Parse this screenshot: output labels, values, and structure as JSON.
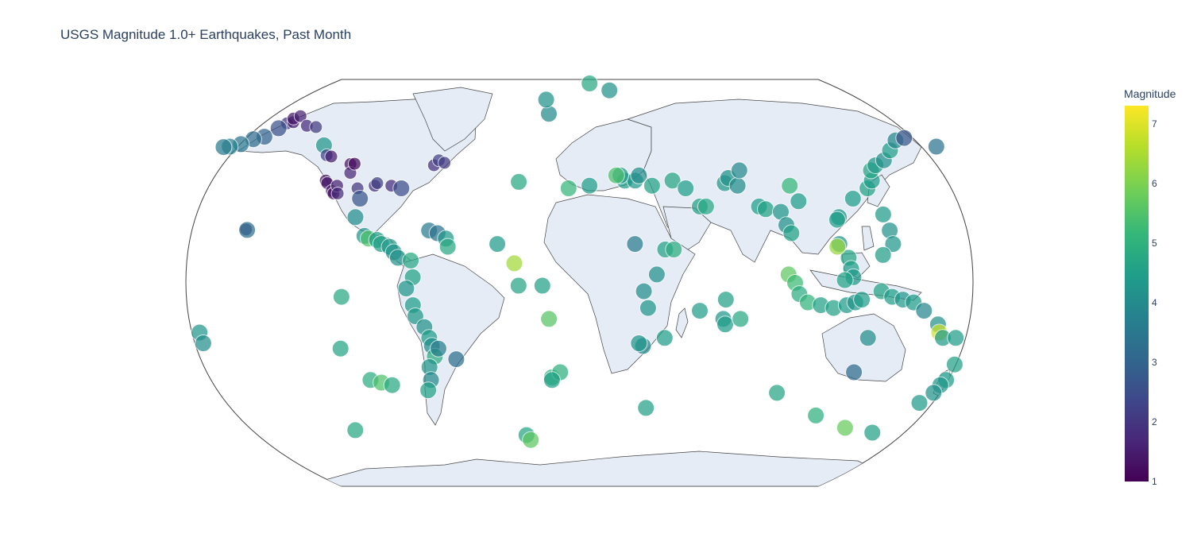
{
  "title": "USGS Magnitude 1.0+ Earthquakes, Past Month",
  "colorbar": {
    "title": "Magnitude",
    "colorscale": [
      "#440154",
      "#482878",
      "#3e4989",
      "#31688e",
      "#26828e",
      "#1f9e89",
      "#35b779",
      "#6ece58",
      "#b5de2b",
      "#fde725"
    ],
    "range": [
      1,
      7.3
    ],
    "ticks": [
      "1",
      "2",
      "3",
      "4",
      "5",
      "6",
      "7"
    ]
  },
  "map": {
    "projection": "natural earth",
    "land_color": "#e5ecf6",
    "coast_color": "#444444"
  },
  "chart_data": {
    "type": "scatter",
    "x_label": "Longitude",
    "y_label": "Latitude",
    "points": [
      {
        "lon": -152,
        "lat": 61,
        "mag": 2.0
      },
      {
        "lon": -149,
        "lat": 61.5,
        "mag": 1.5
      },
      {
        "lon": -150,
        "lat": 63,
        "mag": 1.4
      },
      {
        "lon": -147,
        "lat": 64,
        "mag": 1.6
      },
      {
        "lon": -155,
        "lat": 59,
        "mag": 2.6
      },
      {
        "lon": -160,
        "lat": 55.5,
        "mag": 3.0
      },
      {
        "lon": -165,
        "lat": 54.5,
        "mag": 3.2
      },
      {
        "lon": -170,
        "lat": 52.5,
        "mag": 3.5
      },
      {
        "lon": -175,
        "lat": 51.5,
        "mag": 3.8
      },
      {
        "lon": -178,
        "lat": 51.3,
        "mag": 3.6
      },
      {
        "lon": 179,
        "lat": 51.5,
        "mag": 3.4
      },
      {
        "lon": -141,
        "lat": 60,
        "mag": 1.8
      },
      {
        "lon": -136,
        "lat": 59.5,
        "mag": 2.1
      },
      {
        "lon": -128,
        "lat": 52,
        "mag": 4.3
      },
      {
        "lon": -125,
        "lat": 48,
        "mag": 2.3
      },
      {
        "lon": -122.5,
        "lat": 47.5,
        "mag": 1.5
      },
      {
        "lon": -122,
        "lat": 38,
        "mag": 1.3
      },
      {
        "lon": -121,
        "lat": 37,
        "mag": 1.4
      },
      {
        "lon": -118,
        "lat": 34,
        "mag": 1.5
      },
      {
        "lon": -117,
        "lat": 33,
        "mag": 1.2
      },
      {
        "lon": -116,
        "lat": 36,
        "mag": 1.6
      },
      {
        "lon": -115,
        "lat": 33,
        "mag": 1.8
      },
      {
        "lon": -112,
        "lat": 44.5,
        "mag": 1.3
      },
      {
        "lon": -111,
        "lat": 41,
        "mag": 1.7
      },
      {
        "lon": -110,
        "lat": 44.6,
        "mag": 1.2
      },
      {
        "lon": -106,
        "lat": 35,
        "mag": 2.0
      },
      {
        "lon": -104,
        "lat": 31,
        "mag": 2.7
      },
      {
        "lon": -98,
        "lat": 36,
        "mag": 1.9
      },
      {
        "lon": -97,
        "lat": 37,
        "mag": 2.2
      },
      {
        "lon": -90,
        "lat": 36,
        "mag": 1.8
      },
      {
        "lon": -85,
        "lat": 35,
        "mag": 2.5
      },
      {
        "lon": -71,
        "lat": 44,
        "mag": 1.9
      },
      {
        "lon": -69,
        "lat": 46,
        "mag": 2.2
      },
      {
        "lon": -66,
        "lat": 45,
        "mag": 2.1
      },
      {
        "lon": -155.5,
        "lat": 19.4,
        "mag": 2.0
      },
      {
        "lon": -155,
        "lat": 19.2,
        "mag": 3.3
      },
      {
        "lon": -105,
        "lat": 24,
        "mag": 4.1
      },
      {
        "lon": -100,
        "lat": 17,
        "mag": 4.3
      },
      {
        "lon": -98,
        "lat": 16,
        "mag": 5.5
      },
      {
        "lon": -94,
        "lat": 15.5,
        "mag": 4.5
      },
      {
        "lon": -92,
        "lat": 14,
        "mag": 4.6
      },
      {
        "lon": -88,
        "lat": 13,
        "mag": 4.4
      },
      {
        "lon": -86,
        "lat": 11,
        "mag": 4.3
      },
      {
        "lon": -84,
        "lat": 9,
        "mag": 4.2
      },
      {
        "lon": -78,
        "lat": 8,
        "mag": 4.8
      },
      {
        "lon": -70,
        "lat": 19,
        "mag": 3.6
      },
      {
        "lon": -66,
        "lat": 18,
        "mag": 3.4
      },
      {
        "lon": -62,
        "lat": 16,
        "mag": 4.4
      },
      {
        "lon": -61,
        "lat": 13,
        "mag": 4.8
      },
      {
        "lon": -77,
        "lat": 2,
        "mag": 4.6
      },
      {
        "lon": -80,
        "lat": -2,
        "mag": 4.3
      },
      {
        "lon": -77,
        "lat": -8,
        "mag": 4.5
      },
      {
        "lon": -76,
        "lat": -12,
        "mag": 4.4
      },
      {
        "lon": -72,
        "lat": -16,
        "mag": 4.2
      },
      {
        "lon": -70,
        "lat": -20,
        "mag": 4.5
      },
      {
        "lon": -69,
        "lat": -23,
        "mag": 4.1
      },
      {
        "lon": -68,
        "lat": -27,
        "mag": 4.9
      },
      {
        "lon": -71,
        "lat": -31,
        "mag": 4.3
      },
      {
        "lon": -71,
        "lat": -36,
        "mag": 4.0
      },
      {
        "lon": -73,
        "lat": -40,
        "mag": 4.6
      },
      {
        "lon": -66,
        "lat": -24,
        "mag": 3.7
      },
      {
        "lon": -58,
        "lat": -28,
        "mag": 3.3
      },
      {
        "lon": -110,
        "lat": -5,
        "mag": 4.8
      },
      {
        "lon": -112,
        "lat": -24,
        "mag": 4.7
      },
      {
        "lon": -100,
        "lat": -36,
        "mag": 4.9
      },
      {
        "lon": -95,
        "lat": -37,
        "mag": 5.5
      },
      {
        "lon": -90,
        "lat": -38,
        "mag": 4.8
      },
      {
        "lon": -114,
        "lat": -56,
        "mag": 4.8
      },
      {
        "lon": -27,
        "lat": -58,
        "mag": 4.7
      },
      {
        "lon": -25,
        "lat": -60,
        "mag": 5.7
      },
      {
        "lon": -38,
        "lat": 14,
        "mag": 4.4
      },
      {
        "lon": -30,
        "lat": 7,
        "mag": 6.4
      },
      {
        "lon": -28,
        "lat": -1,
        "mag": 4.7
      },
      {
        "lon": -17,
        "lat": -1,
        "mag": 4.6
      },
      {
        "lon": -14,
        "lat": -13,
        "mag": 5.6
      },
      {
        "lon": -13,
        "lat": -35,
        "mag": 5.0
      },
      {
        "lon": -29,
        "lat": 37.5,
        "mag": 4.8
      },
      {
        "lon": -16,
        "lat": 65,
        "mag": 4.0
      },
      {
        "lon": -18,
        "lat": 71,
        "mag": 4.2
      },
      {
        "lon": 6,
        "lat": 78,
        "mag": 4.8
      },
      {
        "lon": 17,
        "lat": 75,
        "mag": 4.2
      },
      {
        "lon": 22,
        "lat": 38,
        "mag": 4.5
      },
      {
        "lon": 27,
        "lat": 38,
        "mag": 4.3
      },
      {
        "lon": 29,
        "lat": 40,
        "mag": 4.1
      },
      {
        "lon": 20,
        "lat": 40,
        "mag": 4.4
      },
      {
        "lon": 35,
        "lat": 36,
        "mag": 4.6
      },
      {
        "lon": 45,
        "lat": 38,
        "mag": 4.7
      },
      {
        "lon": 51,
        "lat": 35,
        "mag": 4.5
      },
      {
        "lon": 57,
        "lat": 28,
        "mag": 4.6
      },
      {
        "lon": 60,
        "lat": 28,
        "mag": 4.8
      },
      {
        "lon": 70,
        "lat": 37,
        "mag": 4.4
      },
      {
        "lon": 72,
        "lat": 39,
        "mag": 4.2
      },
      {
        "lon": 76,
        "lat": 36,
        "mag": 4.1
      },
      {
        "lon": 78,
        "lat": 42,
        "mag": 4.0
      },
      {
        "lon": 85,
        "lat": 28,
        "mag": 4.5
      },
      {
        "lon": 88,
        "lat": 27,
        "mag": 4.6
      },
      {
        "lon": 95,
        "lat": 26,
        "mag": 4.3
      },
      {
        "lon": 97,
        "lat": 21,
        "mag": 4.2
      },
      {
        "lon": 99,
        "lat": 18,
        "mag": 4.6
      },
      {
        "lon": 101,
        "lat": 36,
        "mag": 5.2
      },
      {
        "lon": 104,
        "lat": 30,
        "mag": 4.5
      },
      {
        "lon": 97,
        "lat": 3,
        "mag": 5.7
      },
      {
        "lon": 100,
        "lat": 0,
        "mag": 5.3
      },
      {
        "lon": 102,
        "lat": -4,
        "mag": 4.9
      },
      {
        "lon": 106,
        "lat": -7,
        "mag": 5.1
      },
      {
        "lon": 112,
        "lat": -8,
        "mag": 4.6
      },
      {
        "lon": 118,
        "lat": -9,
        "mag": 4.6
      },
      {
        "lon": 124,
        "lat": -8,
        "mag": 4.4
      },
      {
        "lon": 128,
        "lat": -7,
        "mag": 4.3
      },
      {
        "lon": 131,
        "lat": -6,
        "mag": 4.5
      },
      {
        "lon": 121,
        "lat": 14,
        "mag": 4.3
      },
      {
        "lon": 125,
        "lat": 9,
        "mag": 4.7
      },
      {
        "lon": 126,
        "lat": 5,
        "mag": 4.5
      },
      {
        "lon": 127,
        "lat": 2,
        "mag": 4.4
      },
      {
        "lon": 123,
        "lat": 1,
        "mag": 4.6
      },
      {
        "lon": 122,
        "lat": 24,
        "mag": 4.3
      },
      {
        "lon": 121,
        "lat": 23,
        "mag": 4.5
      },
      {
        "lon": 120,
        "lat": 13,
        "mag": 6.3
      },
      {
        "lon": 130,
        "lat": 31,
        "mag": 4.5
      },
      {
        "lon": 138,
        "lat": 35,
        "mag": 4.6
      },
      {
        "lon": 141,
        "lat": 38,
        "mag": 4.5
      },
      {
        "lon": 142,
        "lat": 42,
        "mag": 4.7
      },
      {
        "lon": 145,
        "lat": 44,
        "mag": 4.4
      },
      {
        "lon": 150,
        "lat": 46,
        "mag": 4.2
      },
      {
        "lon": 155,
        "lat": 50,
        "mag": 4.5
      },
      {
        "lon": 160,
        "lat": 54,
        "mag": 3.9
      },
      {
        "lon": 165,
        "lat": 55,
        "mag": 2.7
      },
      {
        "lon": 143,
        "lat": 25,
        "mag": 4.4
      },
      {
        "lon": 145,
        "lat": 19,
        "mag": 4.2
      },
      {
        "lon": 146,
        "lat": 14,
        "mag": 4.3
      },
      {
        "lon": 141,
        "lat": 10,
        "mag": 4.5
      },
      {
        "lon": 140,
        "lat": -3,
        "mag": 4.6
      },
      {
        "lon": 145,
        "lat": -5,
        "mag": 4.5
      },
      {
        "lon": 150,
        "lat": -6,
        "mag": 4.3
      },
      {
        "lon": 155,
        "lat": -7,
        "mag": 4.4
      },
      {
        "lon": 160,
        "lat": -10,
        "mag": 3.9
      },
      {
        "lon": 167,
        "lat": -15,
        "mag": 4.2
      },
      {
        "lon": 168,
        "lat": -18,
        "mag": 6.8
      },
      {
        "lon": 170,
        "lat": -20,
        "mag": 4.4
      },
      {
        "lon": 176,
        "lat": -20,
        "mag": 4.5
      },
      {
        "lon": -177,
        "lat": -18,
        "mag": 4.3
      },
      {
        "lon": -176,
        "lat": -22,
        "mag": 4.1
      },
      {
        "lon": 178,
        "lat": -30,
        "mag": 4.6
      },
      {
        "lon": 176,
        "lat": -36,
        "mag": 4.5
      },
      {
        "lon": 174,
        "lat": -38,
        "mag": 4.3
      },
      {
        "lon": 172,
        "lat": -41,
        "mag": 4.2
      },
      {
        "lon": 167,
        "lat": -45,
        "mag": 4.4
      },
      {
        "lon": 118,
        "lat": -50,
        "mag": 5.0
      },
      {
        "lon": 96,
        "lat": -41,
        "mag": 4.7
      },
      {
        "lon": 135,
        "lat": -55,
        "mag": 5.8
      },
      {
        "lon": 150,
        "lat": -57,
        "mag": 4.6
      },
      {
        "lon": 135,
        "lat": -20,
        "mag": 4.1
      },
      {
        "lon": 131,
        "lat": -33,
        "mag": 3.2
      },
      {
        "lon": 68,
        "lat": -6,
        "mag": 4.6
      },
      {
        "lon": 67,
        "lat": -13,
        "mag": 4.3
      },
      {
        "lon": 68,
        "lat": -15,
        "mag": 4.5
      },
      {
        "lon": 75,
        "lat": -13,
        "mag": 4.8
      },
      {
        "lon": 32,
        "lat": -9,
        "mag": 4.3
      },
      {
        "lon": 30,
        "lat": -3,
        "mag": 4.1
      },
      {
        "lon": 36,
        "lat": 3,
        "mag": 4.2
      },
      {
        "lon": 40,
        "lat": 12,
        "mag": 4.6
      },
      {
        "lon": 44,
        "lat": 12,
        "mag": 4.9
      },
      {
        "lon": 56,
        "lat": -10,
        "mag": 4.5
      },
      {
        "lon": 40,
        "lat": -20,
        "mag": 4.5
      },
      {
        "lon": 30,
        "lat": -23,
        "mag": 4.0
      },
      {
        "lon": 28,
        "lat": -22,
        "mag": 4.3
      },
      {
        "lon": 33,
        "lat": -47,
        "mag": 4.6
      },
      {
        "lon": 18,
        "lat": 40,
        "mag": 5.5
      },
      {
        "lon": 26,
        "lat": 14,
        "mag": 3.6
      },
      {
        "lon": 5,
        "lat": 36,
        "mag": 4.5
      },
      {
        "lon": -5,
        "lat": 35,
        "mag": 5.2
      },
      {
        "lon": -9,
        "lat": -33,
        "mag": 5.0
      },
      {
        "lon": -13,
        "lat": -36,
        "mag": 4.6
      }
    ]
  }
}
